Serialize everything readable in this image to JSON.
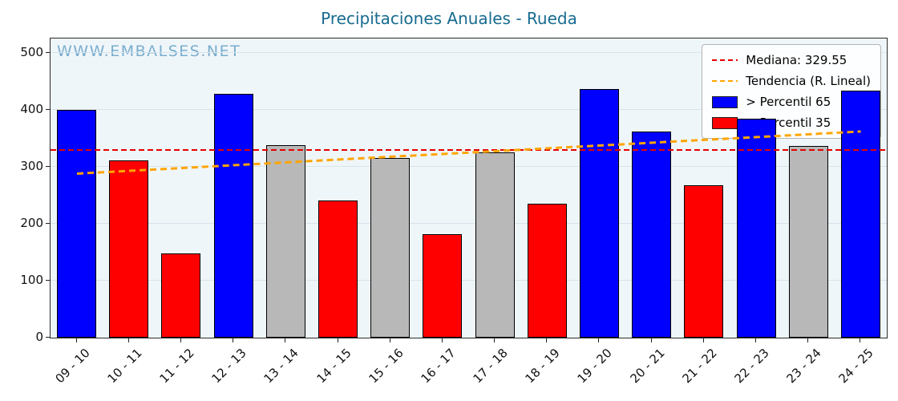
{
  "title": "Precipitaciones Anuales - Rueda",
  "watermark": "WWW.EMBALSES.NET",
  "legend": {
    "median": "Mediana: 329.55",
    "trend": "Tendencia (R. Lineal)",
    "above": "> Percentil 65",
    "below": "< Percentil 35"
  },
  "colors": {
    "above": "#0000ff",
    "below": "#ff0000",
    "mid": "#b8b8b8",
    "median_line": "#e50000",
    "trend_line": "#ffa500",
    "title": "#176b8f",
    "watermark": "#7aadcd",
    "plot_bg": "#eff6fa"
  },
  "chart_data": {
    "type": "bar",
    "title": "Precipitaciones Anuales - Rueda",
    "categories": [
      "09 - 10",
      "10 - 11",
      "11 - 12",
      "12 - 13",
      "13 - 14",
      "14 - 15",
      "15 - 16",
      "16 - 17",
      "17 - 18",
      "18 - 19",
      "19 - 20",
      "20 - 21",
      "21 - 22",
      "22 - 23",
      "23 - 24",
      "24 - 25"
    ],
    "values": [
      400,
      311,
      148,
      428,
      338,
      241,
      315,
      182,
      325,
      235,
      436,
      362,
      267,
      384,
      336,
      433
    ],
    "classes": [
      "above",
      "below",
      "below",
      "above",
      "mid",
      "below",
      "mid",
      "below",
      "mid",
      "below",
      "above",
      "above",
      "below",
      "above",
      "mid",
      "above"
    ],
    "median": 329.55,
    "trend_linear": {
      "start": 288,
      "end": 362
    },
    "ylim": [
      0,
      525
    ],
    "yticks": [
      0,
      100,
      200,
      300,
      400,
      500
    ],
    "xlabel": "",
    "ylabel": "",
    "grid": true,
    "legend_position": "upper right"
  }
}
